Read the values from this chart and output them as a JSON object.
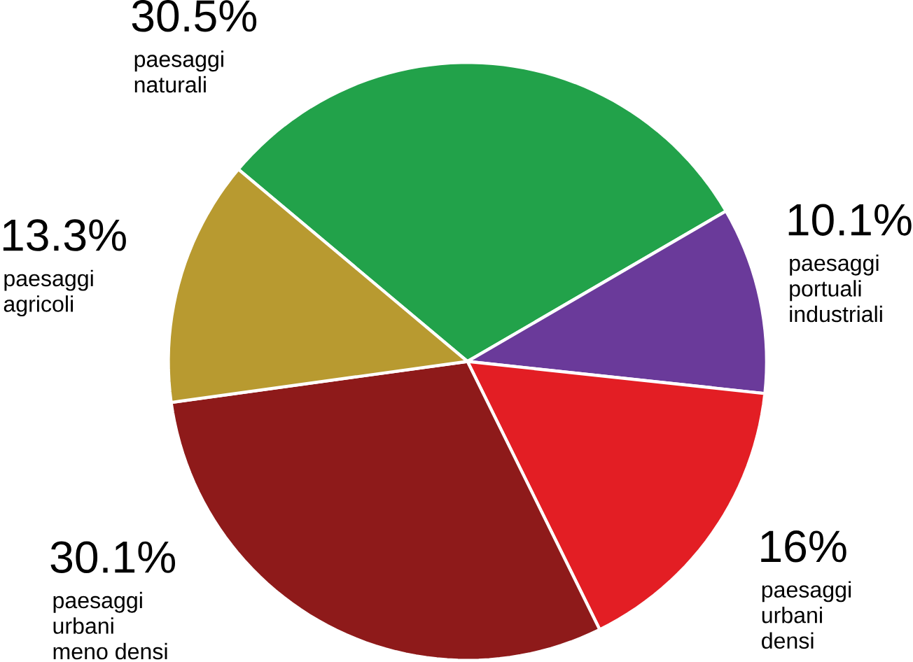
{
  "chart_data": {
    "type": "pie",
    "categories": [
      "paesaggi naturali",
      "paesaggi portuali industriali",
      "paesaggi urbani densi",
      "paesaggi urbani meno densi",
      "paesaggi agricoli"
    ],
    "values": [
      30.5,
      10.1,
      16,
      30.1,
      13.3
    ],
    "value_labels": [
      "30.5%",
      "10.1%",
      "16%",
      "30.1%",
      "13.3%"
    ],
    "colors": [
      "#22a24a",
      "#6a3a9a",
      "#e31e24",
      "#8e1a1a",
      "#b89a30"
    ]
  }
}
